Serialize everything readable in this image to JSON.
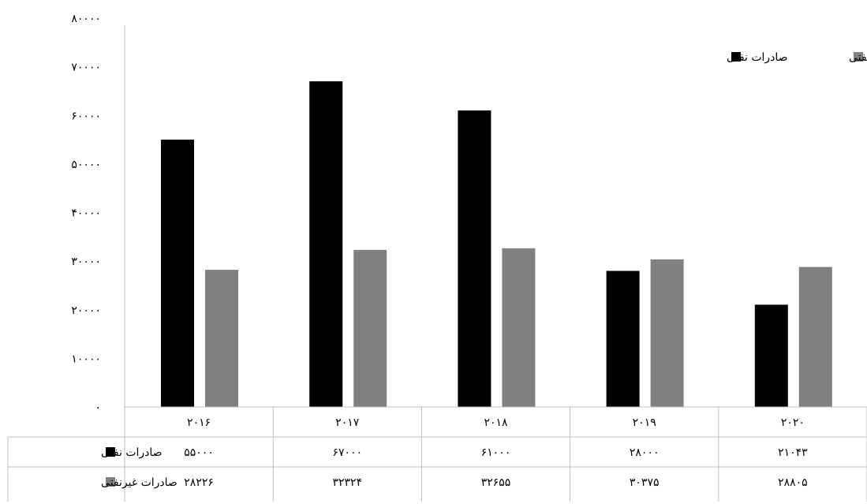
{
  "chart_data": {
    "type": "bar",
    "categories": [
      "۲۰۱۶",
      "۲۰۱۷",
      "۲۰۱۸",
      "۲۰۱۹",
      "۲۰۲۰"
    ],
    "series": [
      {
        "name": "صادرات نفتی",
        "color": "#000000",
        "values": [
          55000,
          67000,
          61000,
          28000,
          21043
        ],
        "value_labels": [
          "۵۵۰۰۰",
          "۶۷۰۰۰",
          "۶۱۰۰۰",
          "۲۸۰۰۰",
          "۲۱۰۴۳"
        ]
      },
      {
        "name": "صادرات غیرنفتی",
        "color": "#808080",
        "values": [
          28226,
          32324,
          32655,
          30375,
          28805
        ],
        "value_labels": [
          "۲۸۲۲۶",
          "۳۲۳۲۴",
          "۳۲۶۵۵",
          "۳۰۳۷۵",
          "۲۸۸۰۵"
        ]
      }
    ],
    "ylim": [
      0,
      80000
    ],
    "yticks": [
      0,
      10000,
      20000,
      30000,
      40000,
      50000,
      60000,
      70000,
      80000
    ],
    "ytick_labels": [
      "۰",
      "۱۰۰۰۰",
      "۲۰۰۰۰",
      "۳۰۰۰۰",
      "۴۰۰۰۰",
      "۵۰۰۰۰",
      "۶۰۰۰۰",
      "۷۰۰۰۰",
      "۸۰۰۰۰"
    ],
    "title": "",
    "xlabel": "",
    "ylabel": "",
    "grid": false,
    "legend_position": "top-right",
    "data_table": true
  }
}
